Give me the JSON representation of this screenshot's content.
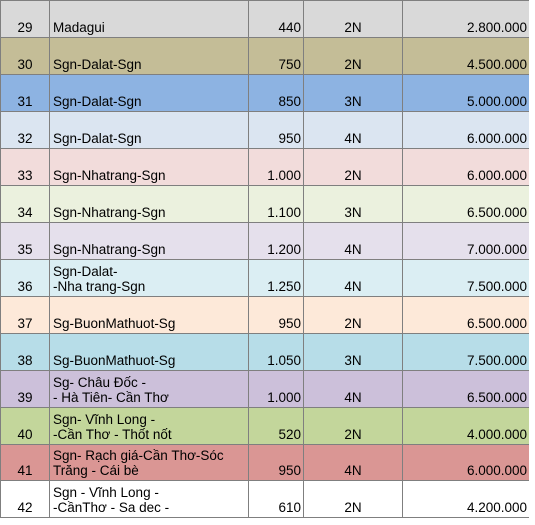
{
  "rows": [
    {
      "no": "29",
      "route": [
        "Madagui"
      ],
      "km": "440",
      "days": "2N",
      "price": "2.800.000",
      "color": "#d9d9d9"
    },
    {
      "no": "30",
      "route": [
        "Sgn-Dalat-Sgn"
      ],
      "km": "750",
      "days": "2N",
      "price": "4.500.000",
      "color": "#c4bd97"
    },
    {
      "no": "31",
      "route": [
        "Sgn-Dalat-Sgn"
      ],
      "km": "850",
      "days": "3N",
      "price": "5.000.000",
      "color": "#8db3e2"
    },
    {
      "no": "32",
      "route": [
        "Sgn-Dalat-Sgn"
      ],
      "km": "950",
      "days": "4N",
      "price": "6.000.000",
      "color": "#dbe5f1"
    },
    {
      "no": "33",
      "route": [
        "Sgn-Nhatrang-Sgn"
      ],
      "km": "1.000",
      "days": "2N",
      "price": "6.000.000",
      "color": "#f2dcdb"
    },
    {
      "no": "34",
      "route": [
        "Sgn-Nhatrang-Sgn"
      ],
      "km": "1.100",
      "days": "3N",
      "price": "6.500.000",
      "color": "#ebf1de"
    },
    {
      "no": "35",
      "route": [
        "Sgn-Nhatrang-Sgn"
      ],
      "km": "1.200",
      "days": "4N",
      "price": "7.000.000",
      "color": "#e5e0ec"
    },
    {
      "no": "36",
      "route": [
        "Sgn-Dalat-",
        "-Nha trang-Sgn"
      ],
      "km": "1.250",
      "days": "4N",
      "price": "7.500.000",
      "color": "#dbeef3"
    },
    {
      "no": "37",
      "route": [
        "Sg-BuonMathuot-Sg"
      ],
      "km": "950",
      "days": "2N",
      "price": "6.500.000",
      "color": "#fde9d9"
    },
    {
      "no": "38",
      "route": [
        "Sg-BuonMathuot-Sg"
      ],
      "km": "1.050",
      "days": "3N",
      "price": "7.500.000",
      "color": "#b7dde8"
    },
    {
      "no": "39",
      "route": [
        "Sg- Châu Đốc -",
        "- Hà Tiên- Cần Thơ"
      ],
      "km": "1.000",
      "days": "4N",
      "price": "6.500.000",
      "color": "#ccc0da"
    },
    {
      "no": "40",
      "route": [
        "Sgn- Vĩnh Long -",
        "-Cần Thơ - Thốt nốt"
      ],
      "km": "520",
      "days": "2N",
      "price": "4.000.000",
      "color": "#c3d69b"
    },
    {
      "no": "41",
      "route": [
        "Sgn- Rạch giá-Cần Thơ-Sóc",
        "Trăng - Cái bè"
      ],
      "km": "950",
      "days": "4N",
      "price": "6.000.000",
      "color": "#da9694"
    },
    {
      "no": "42",
      "route": [
        "Sgn - Vĩnh Long -",
        "-CầnThơ - Sa dec -"
      ],
      "km": "610",
      "days": "2N",
      "price": "4.200.000",
      "color": "#ffffff"
    }
  ]
}
